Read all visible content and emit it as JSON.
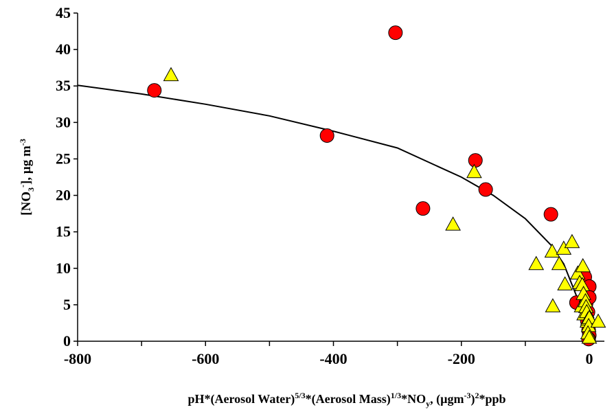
{
  "chart_data": {
    "type": "scatter",
    "xlabel": {
      "parts": [
        "pH*(Aerosol Water)",
        "5/3",
        "*(Aerosol Mass)",
        "1/3",
        "*NO",
        "y",
        ",  (µgm",
        "-3",
        ")",
        "2",
        "*ppb"
      ]
    },
    "ylabel": {
      "parts": [
        "[NO",
        "3",
        "-",
        "], µg m",
        "-3"
      ]
    },
    "xlim": [
      -800,
      0
    ],
    "ylim": [
      0,
      45
    ],
    "x_ticks": [
      -800,
      -600,
      -400,
      -200,
      0
    ],
    "y_ticks": [
      0,
      5,
      10,
      15,
      20,
      25,
      30,
      35,
      40,
      45
    ],
    "grid": false,
    "series": [
      {
        "marker": "circle",
        "color": "#ff0000",
        "points": [
          [
            -680,
            34.4
          ],
          [
            -410,
            28.2
          ],
          [
            -303,
            42.3
          ],
          [
            -260,
            18.2
          ],
          [
            -178,
            24.8
          ],
          [
            -162,
            20.8
          ],
          [
            -60,
            17.4
          ],
          [
            -20,
            5.3
          ],
          [
            -7,
            8.8
          ],
          [
            -5,
            5.2
          ],
          [
            0,
            7.5
          ],
          [
            0,
            6.0
          ],
          [
            -2,
            4.0
          ],
          [
            -3,
            2.8
          ],
          [
            -1,
            1.5
          ],
          [
            0,
            0.8
          ],
          [
            -1,
            0.3
          ]
        ]
      },
      {
        "marker": "triangle",
        "color": "#ffff00",
        "points": [
          [
            -654,
            36.4
          ],
          [
            -213,
            15.9
          ],
          [
            -180,
            23.1
          ],
          [
            -83,
            10.5
          ],
          [
            -58,
            12.2
          ],
          [
            -57,
            4.7
          ],
          [
            -47,
            10.5
          ],
          [
            -40,
            12.6
          ],
          [
            -38,
            7.7
          ],
          [
            -27,
            13.5
          ],
          [
            -18,
            9.2
          ],
          [
            -15,
            7.9
          ],
          [
            -12,
            4.7
          ],
          [
            -11,
            7.6
          ],
          [
            -10,
            10.2
          ],
          [
            -9,
            6.4
          ],
          [
            -8,
            3.6
          ],
          [
            -6,
            5.4
          ],
          [
            -5,
            4.6
          ],
          [
            -4,
            3.9
          ],
          [
            -3,
            2.6
          ],
          [
            -2,
            2.9
          ],
          [
            0,
            3.1
          ],
          [
            -1,
            2.0
          ],
          [
            -2,
            1.0
          ],
          [
            0,
            0.4
          ],
          [
            14,
            2.6
          ]
        ]
      }
    ],
    "fit_curve": {
      "type": "line",
      "color": "#000000",
      "points": [
        [
          -800,
          35.1
        ],
        [
          -700,
          33.9
        ],
        [
          -600,
          32.5
        ],
        [
          -500,
          30.9
        ],
        [
          -400,
          28.8
        ],
        [
          -300,
          26.5
        ],
        [
          -200,
          22.5
        ],
        [
          -150,
          20.0
        ],
        [
          -100,
          16.8
        ],
        [
          -60,
          13.2
        ],
        [
          -40,
          10.6
        ],
        [
          -20,
          6.2
        ],
        [
          -10,
          2.6
        ],
        [
          -6,
          0.2
        ]
      ]
    }
  }
}
